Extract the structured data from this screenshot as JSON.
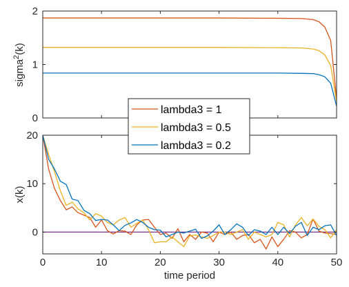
{
  "chart_data": [
    {
      "type": "line",
      "ylabel": "sigma^2(k)",
      "ylabel_main": "sigma",
      "ylabel_sup": "2",
      "ylabel_tail": "(k)",
      "xlim": [
        0,
        50
      ],
      "ylim": [
        0,
        2
      ],
      "xticks": [
        0,
        10,
        20,
        30,
        40,
        50
      ],
      "xtick_labels_shown": false,
      "yticks": [
        0,
        1,
        2
      ],
      "ytick_labels": [
        "0",
        "1",
        "2"
      ],
      "series": [
        {
          "name": "lambda3 = 1",
          "color": "#D95319",
          "x": [
            0,
            30,
            40,
            44,
            46,
            47,
            48,
            49,
            50
          ],
          "y": [
            1.87,
            1.87,
            1.865,
            1.86,
            1.84,
            1.8,
            1.7,
            1.45,
            0.35
          ]
        },
        {
          "name": "lambda3 = 0.5",
          "color": "#EDB120",
          "x": [
            0,
            30,
            40,
            44,
            46,
            47,
            48,
            49,
            50
          ],
          "y": [
            1.32,
            1.32,
            1.315,
            1.31,
            1.29,
            1.26,
            1.18,
            0.98,
            0.3
          ]
        },
        {
          "name": "lambda3 = 0.2",
          "color": "#0072BD",
          "x": [
            0,
            30,
            40,
            44,
            46,
            47,
            48,
            49,
            50
          ],
          "y": [
            0.84,
            0.84,
            0.84,
            0.835,
            0.83,
            0.81,
            0.77,
            0.65,
            0.22
          ]
        }
      ]
    },
    {
      "type": "line",
      "xlabel": "time period",
      "ylabel": "x(k)",
      "xlim": [
        0,
        50
      ],
      "ylim": [
        -4.5,
        20
      ],
      "xticks": [
        0,
        10,
        20,
        30,
        40,
        50
      ],
      "xtick_labels": [
        "0",
        "10",
        "20",
        "30",
        "40",
        "50"
      ],
      "yticks": [
        0,
        10,
        20
      ],
      "ytick_labels": [
        "0",
        "10",
        "20"
      ],
      "reference_line": {
        "y": 0,
        "color": "#7E2F8E"
      },
      "series": [
        {
          "name": "lambda3 = 1",
          "color": "#D95319",
          "x": [
            0,
            1,
            2,
            3,
            4,
            5,
            6,
            7,
            8,
            9,
            10,
            11,
            12,
            13,
            14,
            15,
            16,
            17,
            18,
            19,
            20,
            21,
            22,
            23,
            24,
            25,
            26,
            27,
            28,
            29,
            30,
            31,
            32,
            33,
            34,
            35,
            36,
            37,
            38,
            39,
            40,
            41,
            42,
            43,
            44,
            45,
            46,
            47,
            48,
            49,
            50
          ],
          "y": [
            20,
            13,
            9,
            6.5,
            4.6,
            5.2,
            4,
            3.5,
            3,
            1,
            2.5,
            0.3,
            -0.4,
            0.3,
            0.2,
            -0.5,
            1.5,
            2.5,
            2.6,
            1,
            -0.5,
            -0.2,
            -1.3,
            0.7,
            -2,
            -0.5,
            -1.5,
            0,
            -0.2,
            -2,
            0,
            -0.5,
            0,
            -1.5,
            -0.7,
            -0.5,
            -2.2,
            -1.5,
            -3.5,
            -1,
            -3,
            -1.5,
            0.3,
            0,
            -1.2,
            -0.5,
            2.7,
            0.2,
            -0.2,
            -0.3,
            -0.5
          ]
        },
        {
          "name": "lambda3 = 0.5",
          "color": "#EDB120",
          "x": [
            0,
            1,
            2,
            3,
            4,
            5,
            6,
            7,
            8,
            9,
            10,
            11,
            12,
            13,
            14,
            15,
            16,
            17,
            18,
            19,
            20,
            21,
            22,
            23,
            24,
            25,
            26,
            27,
            28,
            29,
            30,
            31,
            32,
            33,
            34,
            35,
            36,
            37,
            38,
            39,
            40,
            41,
            42,
            43,
            44,
            45,
            46,
            47,
            48,
            49,
            50
          ],
          "y": [
            20,
            16,
            12.5,
            8.5,
            5.5,
            6.2,
            4.8,
            4,
            2.5,
            3.8,
            3.3,
            2,
            1.5,
            2.5,
            3,
            1,
            1.8,
            2.5,
            0.5,
            -2.2,
            -2,
            -2,
            -1,
            -2,
            -3,
            -0.8,
            -0.6,
            -1,
            -1.3,
            -0.7,
            0,
            0,
            -0.5,
            0,
            0.5,
            -1.5,
            0,
            -0.5,
            -1,
            -0.5,
            2,
            1.5,
            -1,
            1.5,
            3,
            1.3,
            2.7,
            1.2,
            0.5,
            -1.2,
            0.5
          ]
        },
        {
          "name": "lambda3 = 0.2",
          "color": "#0072BD",
          "x": [
            0,
            1,
            2,
            3,
            4,
            5,
            6,
            7,
            8,
            9,
            10,
            11,
            12,
            13,
            14,
            15,
            16,
            17,
            18,
            19,
            20,
            21,
            22,
            23,
            24,
            25,
            26,
            27,
            28,
            29,
            30,
            31,
            32,
            33,
            34,
            35,
            36,
            37,
            38,
            39,
            40,
            41,
            42,
            43,
            44,
            45,
            46,
            47,
            48,
            49,
            50
          ],
          "y": [
            20,
            15,
            13,
            10.5,
            9.8,
            6.8,
            6.5,
            4.5,
            3.8,
            2.4,
            2.6,
            2.5,
            1.5,
            0.3,
            1.4,
            1.9,
            2.6,
            2,
            1,
            0.5,
            0.4,
            -1,
            -0.5,
            0,
            -0.2,
            0.2,
            0.6,
            -1.3,
            -0.8,
            0.2,
            1.5,
            -0.5,
            0.5,
            1.7,
            1,
            -0.7,
            0.5,
            0.2,
            -0.5,
            1,
            -0.5,
            1,
            -0.3,
            1.2,
            2,
            -0.7,
            1,
            0.5,
            1.3,
            1.5,
            -0.7
          ]
        }
      ]
    }
  ],
  "legend": {
    "entries": [
      "lambda3 = 1",
      "lambda3 = 0.5",
      "lambda3 = 0.2"
    ],
    "colors": [
      "#D95319",
      "#EDB120",
      "#0072BD"
    ]
  }
}
